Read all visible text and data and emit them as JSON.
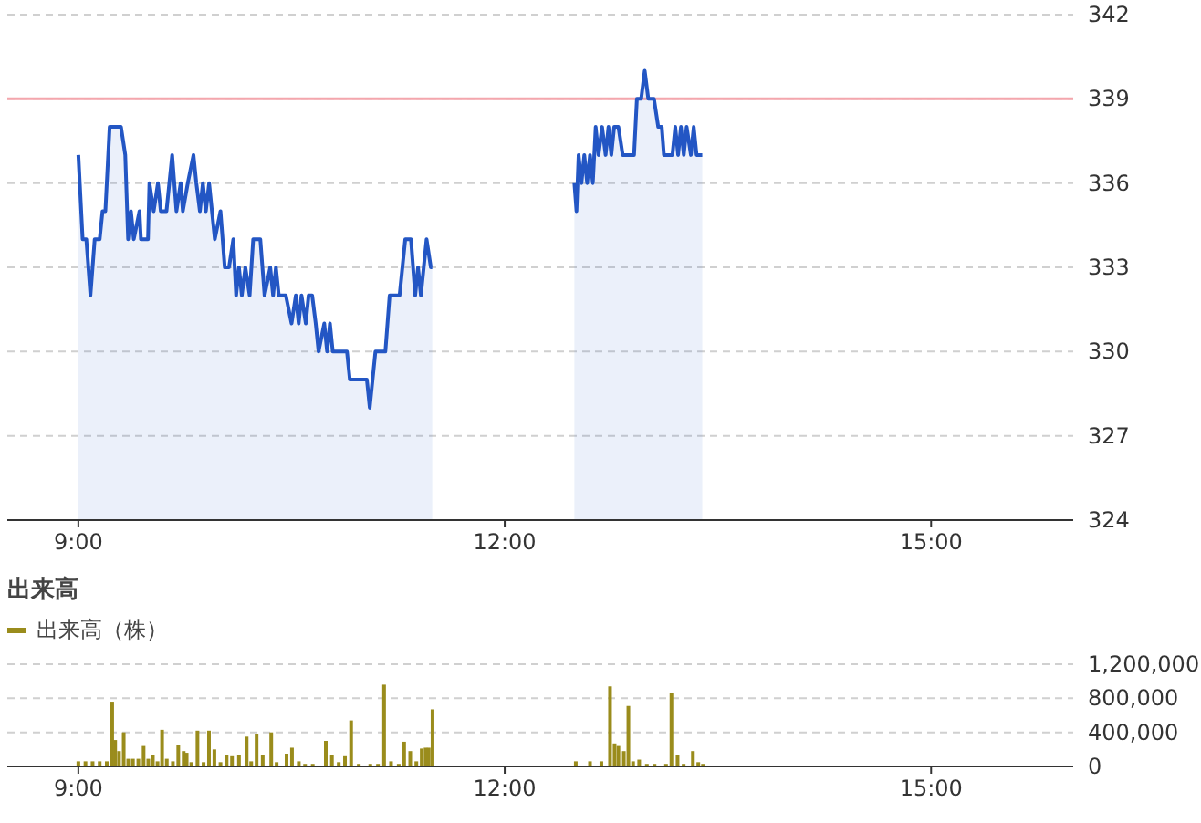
{
  "chart_data": [
    {
      "type": "area",
      "xlim": [
        8.5,
        16
      ],
      "ylim": [
        324,
        342
      ],
      "xticks": [
        {
          "value": 9,
          "label": "9:00"
        },
        {
          "value": 12,
          "label": "12:00"
        },
        {
          "value": 15,
          "label": "15:00"
        }
      ],
      "yticks": [
        324,
        327,
        330,
        333,
        336,
        339,
        342
      ],
      "grid": "y",
      "ref_lines": [
        {
          "axis": "y",
          "value": 339,
          "color": "#f4a6ad"
        }
      ],
      "series": [
        {
          "color": "#2356c4",
          "x": [
            9.0,
            9.03,
            9.056,
            9.085,
            9.115,
            9.15,
            9.17,
            9.19,
            9.22,
            9.3,
            9.33,
            9.35,
            9.37,
            9.39,
            9.43,
            9.44,
            9.49,
            9.5,
            9.53,
            9.56,
            9.58,
            9.62,
            9.66,
            9.69,
            9.72,
            9.735,
            9.77,
            9.81,
            9.83,
            9.855,
            9.876,
            9.897,
            9.92,
            9.94,
            9.96,
            10.0,
            10.03,
            10.06,
            10.09,
            10.11,
            10.13,
            10.15,
            10.175,
            10.205,
            10.23,
            10.28,
            10.31,
            10.35,
            10.37,
            10.39,
            10.41,
            10.46,
            10.5,
            10.53,
            10.55,
            10.57,
            10.6,
            10.62,
            10.645,
            10.67,
            10.69,
            10.73,
            10.75,
            10.77,
            10.79,
            10.89,
            10.91,
            11.03,
            11.05,
            11.09,
            11.16,
            11.19,
            11.26,
            11.3,
            11.34,
            11.37,
            11.39,
            11.41,
            11.43,
            11.45,
            11.48,
            11.49
          ],
          "values": [
            337,
            334,
            334,
            332,
            334,
            334,
            335,
            335,
            338,
            338,
            337,
            334,
            335,
            334,
            335,
            334,
            334,
            336,
            335,
            336,
            335,
            335,
            337,
            335,
            336,
            335,
            336,
            337,
            336,
            335,
            336,
            335,
            336,
            335,
            334,
            335,
            333,
            333,
            334,
            332,
            333,
            332,
            333,
            332,
            334,
            334,
            332,
            333,
            332,
            333,
            332,
            332,
            331,
            332,
            331,
            332,
            331,
            332,
            332,
            331,
            330,
            331,
            330,
            331,
            330,
            330,
            329,
            329,
            328,
            330,
            330,
            332,
            332,
            334,
            334,
            332,
            333,
            332,
            333,
            334,
            333,
            333
          ]
        },
        {
          "color": "#2356c4",
          "x": [
            12.49,
            12.505,
            12.52,
            12.54,
            12.56,
            12.58,
            12.6,
            12.62,
            12.64,
            12.66,
            12.685,
            12.71,
            12.73,
            12.75,
            12.77,
            12.8,
            12.83,
            12.91,
            12.93,
            12.96,
            12.985,
            13.01,
            13.05,
            13.08,
            13.105,
            13.12,
            13.18,
            13.2,
            13.22,
            13.24,
            13.26,
            13.28,
            13.31,
            13.33,
            13.35,
            13.39
          ],
          "values": [
            336,
            335,
            337,
            336,
            337,
            336,
            337,
            336,
            338,
            337,
            338,
            337,
            338,
            337,
            338,
            338,
            337,
            337,
            339,
            339,
            340,
            339,
            339,
            338,
            338,
            337,
            337,
            338,
            337,
            338,
            337,
            338,
            337,
            338,
            337,
            337
          ]
        }
      ]
    },
    {
      "type": "bar",
      "title": "出来高",
      "legend": "top left",
      "xlim": [
        8.5,
        16
      ],
      "ylim": [
        0,
        1200000
      ],
      "xticks": [
        {
          "value": 9,
          "label": "9:00"
        },
        {
          "value": 12,
          "label": "12:00"
        },
        {
          "value": 15,
          "label": "15:00"
        }
      ],
      "yticks": [
        {
          "value": 0,
          "label": "0"
        },
        {
          "value": 400000,
          "label": "400,000"
        },
        {
          "value": 800000,
          "label": "800,000"
        },
        {
          "value": 1200000,
          "label": "1,200,000"
        }
      ],
      "grid": "y",
      "series": [
        {
          "name": "出来高（株）",
          "color": "#9a8c1c",
          "x": [
            9.0,
            9.05,
            9.1,
            9.15,
            9.2,
            9.238,
            9.259,
            9.286,
            9.319,
            9.351,
            9.384,
            9.422,
            9.459,
            9.492,
            9.524,
            9.557,
            9.589,
            9.622,
            9.665,
            9.703,
            9.741,
            9.762,
            9.795,
            9.838,
            9.881,
            9.919,
            9.957,
            10.0,
            10.043,
            10.081,
            10.13,
            10.184,
            10.216,
            10.254,
            10.297,
            10.357,
            10.395,
            10.465,
            10.503,
            10.551,
            10.595,
            10.649,
            10.741,
            10.784,
            10.832,
            10.876,
            10.919,
            10.973,
            11.054,
            11.108,
            11.151,
            11.2,
            11.254,
            11.292,
            11.335,
            11.378,
            11.416,
            11.443,
            11.465,
            11.492,
            12.5,
            12.6,
            12.68,
            12.741,
            12.773,
            12.8,
            12.838,
            12.87,
            12.903,
            12.946,
            13.0,
            13.054,
            13.135,
            13.173,
            13.216,
            13.259,
            13.324,
            13.362,
            13.395
          ],
          "values": [
            60000,
            60000,
            60000,
            60000,
            60000,
            760000,
            310000,
            180000,
            400000,
            90000,
            90000,
            90000,
            240000,
            90000,
            130000,
            60000,
            430000,
            90000,
            60000,
            250000,
            180000,
            160000,
            50000,
            420000,
            50000,
            420000,
            200000,
            50000,
            130000,
            120000,
            130000,
            350000,
            60000,
            380000,
            130000,
            400000,
            50000,
            150000,
            220000,
            60000,
            30000,
            30000,
            300000,
            130000,
            50000,
            120000,
            540000,
            30000,
            30000,
            30000,
            960000,
            60000,
            30000,
            290000,
            180000,
            60000,
            210000,
            220000,
            220000,
            670000,
            60000,
            60000,
            60000,
            940000,
            270000,
            240000,
            180000,
            710000,
            60000,
            80000,
            30000,
            30000,
            30000,
            860000,
            130000,
            30000,
            180000,
            50000,
            30000
          ]
        }
      ]
    }
  ]
}
